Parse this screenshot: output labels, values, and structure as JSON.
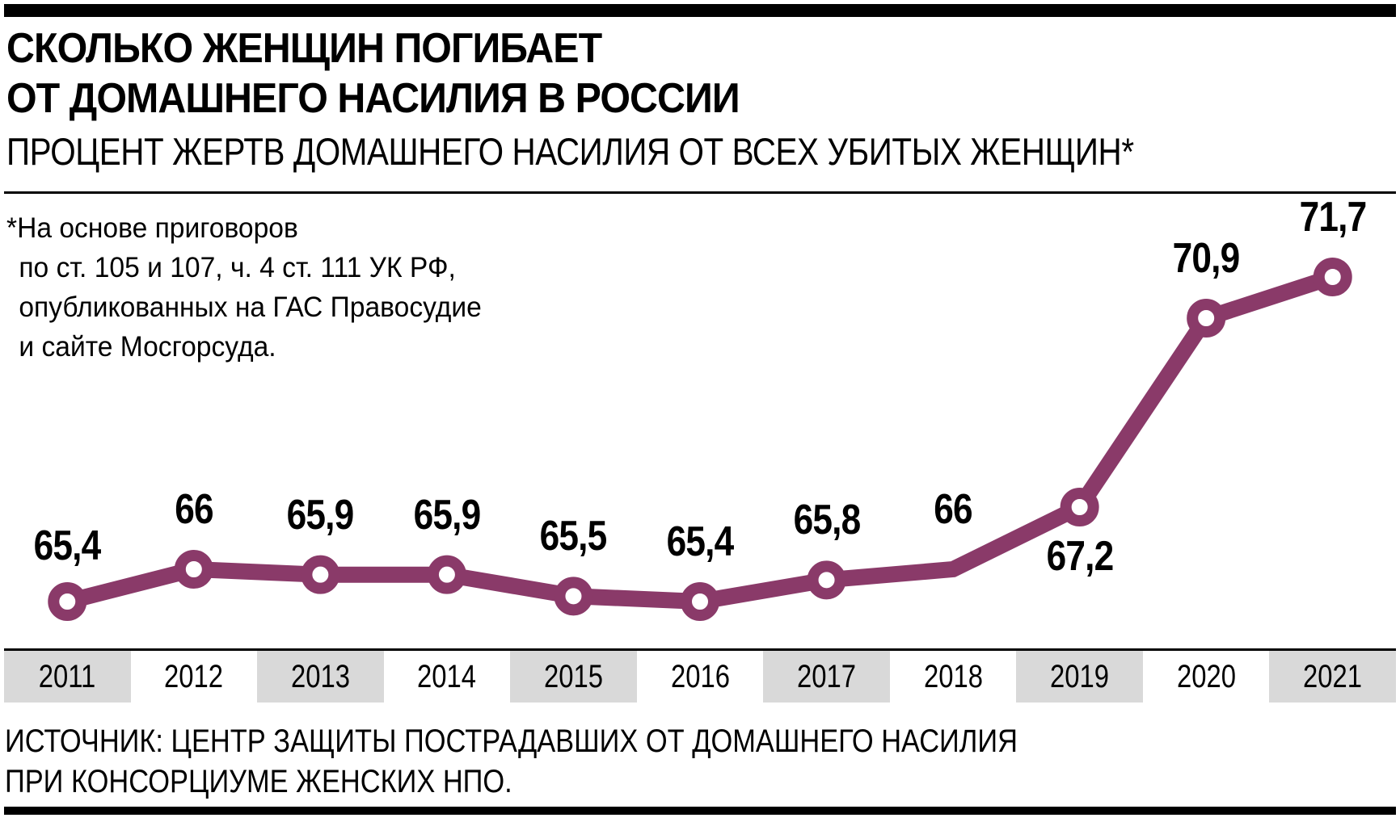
{
  "header": {
    "title_line1": "СКОЛЬКО ЖЕНЩИН ПОГИБАЕТ",
    "title_line2": "ОТ ДОМАШНЕГО НАСИЛИЯ В РОССИИ",
    "subtitle": "ПРОЦЕНТ ЖЕРТВ ДОМАШНЕГО НАСИЛИЯ ОТ ВСЕХ УБИТЫХ ЖЕНЩИН*"
  },
  "footnote": {
    "lines": [
      "*На основе приговоров",
      "по ст. 105 и 107, ч. 4 ст. 111 УК РФ,",
      "опубликованных на ГАС Правосудие",
      "и сайте Мосгорсуда."
    ]
  },
  "source": {
    "line1": "ИСТОЧНИК: ЦЕНТР ЗАЩИТЫ ПОСТРАДАВШИХ ОТ ДОМАШНЕГО НАСИЛИЯ",
    "line2": "ПРИ КОНСОРЦИУМЕ ЖЕНСКИХ НПО."
  },
  "colors": {
    "line": "#8a3a69",
    "band_shade": "#d9d9d9"
  },
  "labels": [
    "65,4",
    "66",
    "65,9",
    "65,9",
    "65,5",
    "65,4",
    "65,8",
    "66",
    "67,2",
    "70,9",
    "71,7"
  ],
  "chart_data": {
    "type": "line",
    "title": "СКОЛЬКО ЖЕНЩИН ПОГИБАЕТ ОТ ДОМАШНЕГО НАСИЛИЯ В РОССИИ",
    "subtitle": "ПРОЦЕНТ ЖЕРТВ ДОМАШНЕГО НАСИЛИЯ ОТ ВСЕХ УБИТЫХ ЖЕНЩИН*",
    "xlabel": "",
    "ylabel": "",
    "categories": [
      "2011",
      "2012",
      "2013",
      "2014",
      "2015",
      "2016",
      "2017",
      "2018",
      "2019",
      "2020",
      "2021"
    ],
    "series": [
      {
        "name": "Процент жертв домашнего насилия от всех убитых женщин",
        "values": [
          65.4,
          66.0,
          65.9,
          65.9,
          65.5,
          65.4,
          65.8,
          66.0,
          67.2,
          70.9,
          71.7
        ]
      }
    ],
    "data_labels": [
      "65,4",
      "66",
      "65,9",
      "65,9",
      "65,5",
      "65,4",
      "65,8",
      "66",
      "67,2",
      "70,9",
      "71,7"
    ],
    "markers": [
      true,
      true,
      true,
      true,
      true,
      true,
      true,
      false,
      true,
      true,
      true
    ],
    "grid": false,
    "y_axis_visible": false,
    "legend": "none",
    "annotations": [
      "*На основе приговоров по ст. 105 и 107, ч. 4 ст. 111 УК РФ, опубликованных на ГАС Правосудие и сайте Мосгорсуда."
    ],
    "source": "ИСТОЧНИК: ЦЕНТР ЗАЩИТЫ ПОСТРАДАВШИХ ОТ ДОМАШНЕГО НАСИЛИЯ ПРИ КОНСОРЦИУМЕ ЖЕНСКИХ НПО."
  }
}
